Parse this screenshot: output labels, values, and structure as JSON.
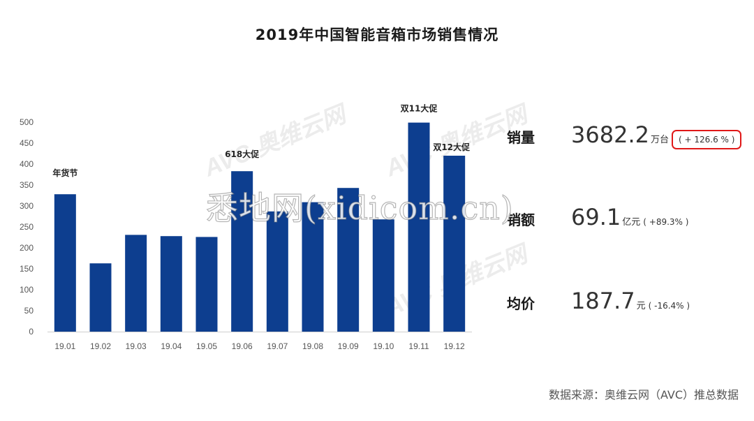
{
  "title": "2019年中国智能音箱市场销售情况",
  "chart_data": {
    "type": "bar",
    "categories": [
      "19.01",
      "19.02",
      "19.03",
      "19.04",
      "19.05",
      "19.06",
      "19.07",
      "19.08",
      "19.09",
      "19.10",
      "19.11",
      "19.12"
    ],
    "values": [
      328,
      163,
      231,
      228,
      226,
      383,
      287,
      309,
      343,
      268,
      499,
      420
    ],
    "ylim": [
      0,
      500
    ],
    "yticks": [
      0,
      50,
      100,
      150,
      200,
      250,
      300,
      350,
      400,
      450,
      500
    ],
    "grid": false,
    "bar_color": "#0d3e8f",
    "annotations": [
      {
        "index": 0,
        "text": "年货节"
      },
      {
        "index": 5,
        "text": "618大促"
      },
      {
        "index": 10,
        "text": "双11大促"
      },
      {
        "index": 11,
        "text": "双12大促"
      }
    ]
  },
  "stats": {
    "volume": {
      "label": "销量",
      "value": "3682.2",
      "unit": "万台",
      "change": "( + 126.6 % )"
    },
    "revenue": {
      "label": "销额",
      "value": "69.1",
      "unit": "亿元",
      "change": "( +89.3% )"
    },
    "price": {
      "label": "均价",
      "value": "187.7",
      "unit": "元",
      "change": "( -16.4% )"
    }
  },
  "highlight_color": "#e01818",
  "source": "数据来源：奥维云网（AVC）推总数据",
  "watermark": "悉地网(xidicom.cn)",
  "logo_text": "AVC 奥维云网"
}
